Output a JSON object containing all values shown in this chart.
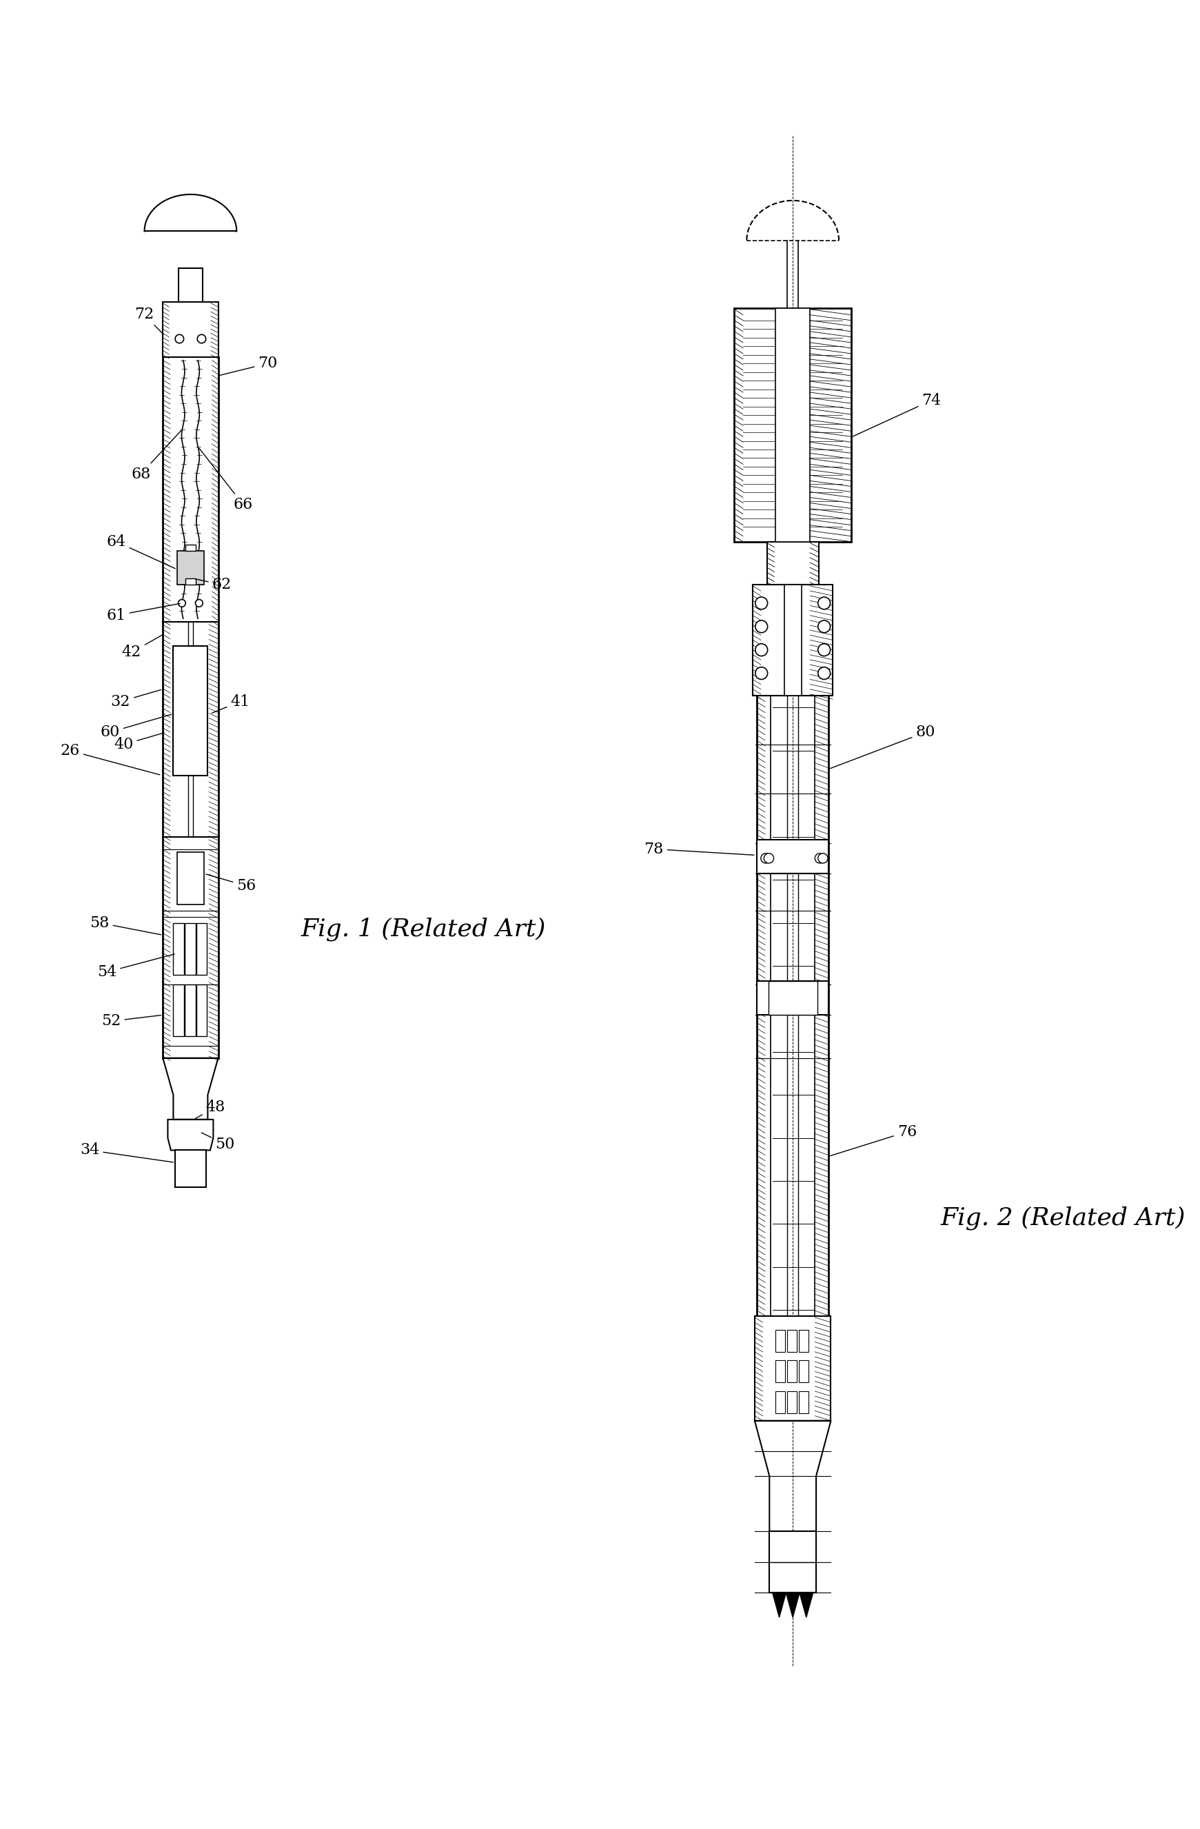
{
  "fig_width": 17.41,
  "fig_height": 26.53,
  "background_color": "#ffffff",
  "fig1_title": "Fig. 1 (Related Art)",
  "fig2_title": "Fig. 2 (Related Art)",
  "label_fontsize": 16,
  "line_color": "#000000"
}
